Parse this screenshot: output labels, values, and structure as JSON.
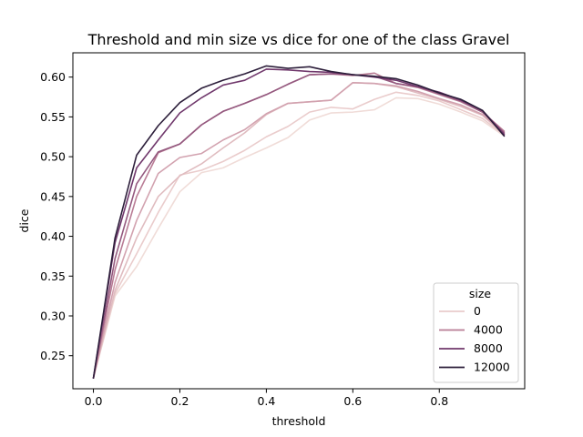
{
  "chart_data": {
    "type": "line",
    "title": "Threshold and min size vs dice for one of the class Gravel",
    "xlabel": "threshold",
    "ylabel": "dice",
    "xlim": [
      -0.0475,
      0.9975
    ],
    "ylim": [
      0.2085,
      0.6305
    ],
    "xticks": [
      0.0,
      0.2,
      0.4,
      0.6,
      0.8
    ],
    "xtick_labels": [
      "0.0",
      "0.2",
      "0.4",
      "0.6",
      "0.8"
    ],
    "yticks": [
      0.25,
      0.3,
      0.35,
      0.4,
      0.45,
      0.5,
      0.55,
      0.6
    ],
    "ytick_labels": [
      "0.25",
      "0.30",
      "0.35",
      "0.40",
      "0.45",
      "0.50",
      "0.55",
      "0.60"
    ],
    "grid": false,
    "legend": {
      "title": "size",
      "placement": "lower right",
      "entries": [
        {
          "label": "0",
          "color": "#eacccc"
        },
        {
          "label": "4000",
          "color": "#b97c95"
        },
        {
          "label": "8000",
          "color": "#70386c"
        },
        {
          "label": "12000",
          "color": "#2d1f3b"
        }
      ]
    },
    "x": [
      0.0,
      0.05,
      0.1,
      0.15,
      0.2,
      0.25,
      0.3,
      0.35,
      0.4,
      0.45,
      0.5,
      0.55,
      0.6,
      0.65,
      0.7,
      0.75,
      0.8,
      0.85,
      0.9,
      0.95
    ],
    "series": [
      {
        "color": "#f0dcd8",
        "values": [
          0.222,
          0.325,
          0.362,
          0.41,
          0.456,
          0.48,
          0.486,
          0.499,
          0.511,
          0.524,
          0.546,
          0.555,
          0.556,
          0.559,
          0.574,
          0.573,
          0.566,
          0.556,
          0.545,
          0.526
        ]
      },
      {
        "color": "#eacccc",
        "values": [
          0.222,
          0.328,
          0.378,
          0.43,
          0.477,
          0.483,
          0.494,
          0.508,
          0.525,
          0.538,
          0.556,
          0.562,
          0.56,
          0.572,
          0.581,
          0.577,
          0.57,
          0.559,
          0.548,
          0.527
        ]
      },
      {
        "color": "#e0bcc0",
        "values": [
          0.222,
          0.332,
          0.398,
          0.45,
          0.476,
          0.491,
          0.511,
          0.53,
          0.553,
          0.567,
          0.569,
          0.571,
          0.593,
          0.592,
          0.588,
          0.58,
          0.572,
          0.563,
          0.552,
          0.528
        ]
      },
      {
        "color": "#d2a2af",
        "values": [
          0.222,
          0.342,
          0.42,
          0.479,
          0.499,
          0.504,
          0.521,
          0.534,
          0.554,
          0.567,
          0.569,
          0.571,
          0.593,
          0.592,
          0.589,
          0.582,
          0.573,
          0.565,
          0.553,
          0.529
        ]
      },
      {
        "color": "#b97c95",
        "values": [
          0.222,
          0.358,
          0.45,
          0.505,
          0.516,
          0.54,
          0.557,
          0.567,
          0.578,
          0.591,
          0.603,
          0.604,
          0.602,
          0.605,
          0.592,
          0.587,
          0.578,
          0.569,
          0.556,
          0.532
        ]
      },
      {
        "color": "#94597f",
        "values": [
          0.222,
          0.372,
          0.466,
          0.506,
          0.516,
          0.54,
          0.557,
          0.567,
          0.578,
          0.591,
          0.603,
          0.604,
          0.603,
          0.601,
          0.592,
          0.588,
          0.579,
          0.57,
          0.556,
          0.53
        ]
      },
      {
        "color": "#70386c",
        "values": [
          0.222,
          0.392,
          0.486,
          0.521,
          0.555,
          0.574,
          0.59,
          0.596,
          0.61,
          0.609,
          0.607,
          0.606,
          0.603,
          0.6,
          0.596,
          0.588,
          0.581,
          0.571,
          0.558,
          0.528
        ]
      },
      {
        "color": "#2d1f3b",
        "values": [
          0.222,
          0.398,
          0.502,
          0.539,
          0.568,
          0.586,
          0.596,
          0.604,
          0.614,
          0.611,
          0.613,
          0.607,
          0.603,
          0.601,
          0.598,
          0.59,
          0.58,
          0.572,
          0.558,
          0.526
        ]
      }
    ]
  }
}
